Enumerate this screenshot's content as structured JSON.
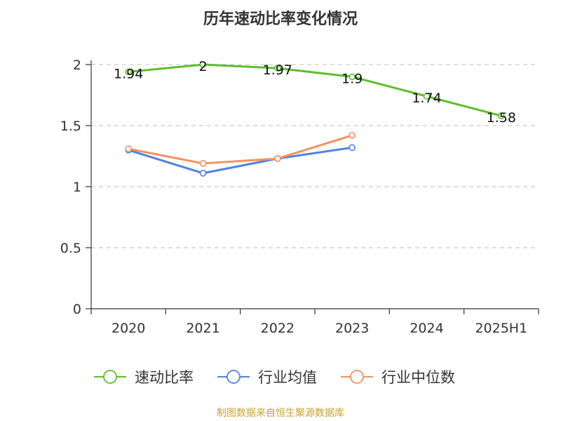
{
  "chart_data": {
    "type": "line",
    "title": "历年速动比率变化情况",
    "xlabel": "",
    "ylabel": "",
    "categories": [
      "2020",
      "2021",
      "2022",
      "2023",
      "2024",
      "2025H1"
    ],
    "ylim": [
      0,
      2
    ],
    "yticks": [
      "0",
      "0.5",
      "1",
      "1.5",
      "2"
    ],
    "grid": true,
    "legend_position": "bottom",
    "series": [
      {
        "name": "速动比率",
        "color": "#5cbf2a",
        "values": [
          1.94,
          2,
          1.97,
          1.9,
          1.74,
          1.58
        ],
        "labels": [
          "1.94",
          "2",
          "1.97",
          "1.9",
          "1.74",
          "1.58"
        ]
      },
      {
        "name": "行业均值",
        "color": "#4f82e0",
        "values": [
          1.3,
          1.11,
          1.23,
          1.32,
          null,
          null
        ]
      },
      {
        "name": "行业中位数",
        "color": "#f4915e",
        "values": [
          1.31,
          1.19,
          1.23,
          1.42,
          null,
          null
        ]
      }
    ]
  },
  "source": "制图数据来自恒生聚源数据库"
}
